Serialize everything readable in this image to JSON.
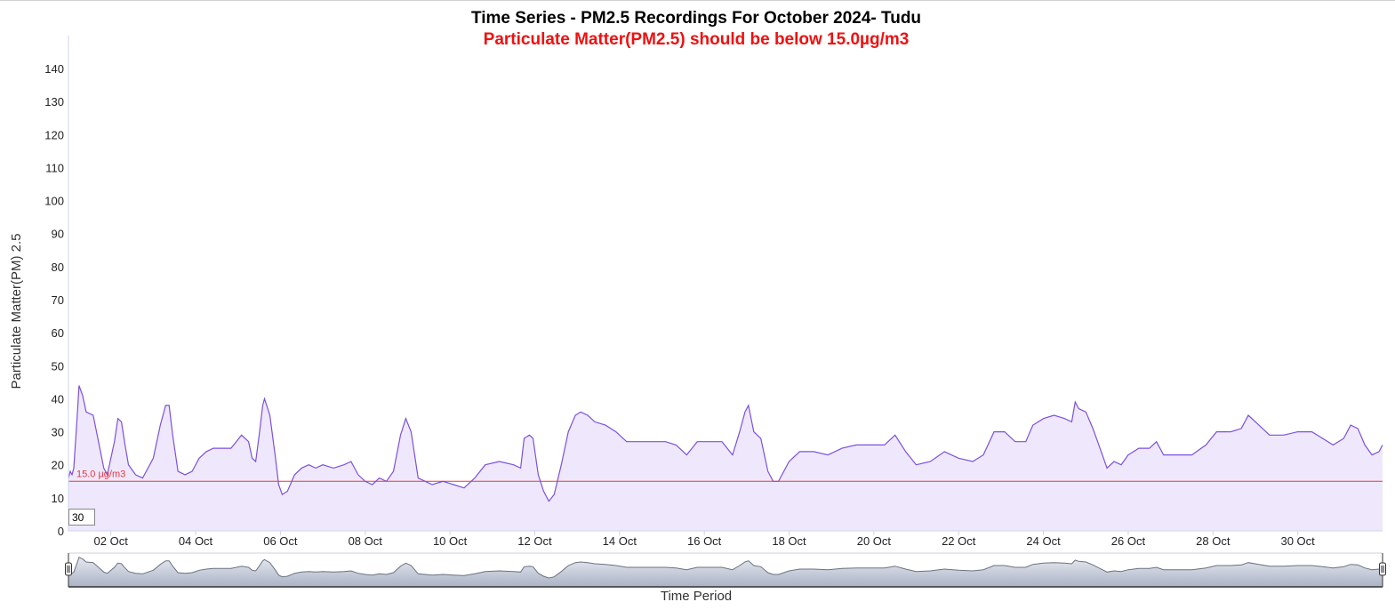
{
  "title": "Time Series - PM2.5 Recordings For October 2024- Tudu",
  "subtitle": "Particulate Matter(PM2.5) should be below 15.0µg/m3",
  "colors": {
    "line": "#7b50e0",
    "fill": "#efe8fc",
    "threshold": "#e8373c",
    "subtitle": "#ee1111",
    "navigator_fill": "#aab2c5",
    "navigator_line": "#6b7280"
  },
  "period_input": {
    "value": "30"
  },
  "chart_data": {
    "type": "area",
    "title": "Time Series - PM2.5 Recordings For October 2024- Tudu",
    "subtitle": "Particulate Matter(PM2.5) should be below 15.0µg/m3",
    "xlabel": "Time Period",
    "ylabel": "Particulate Matter(PM) 2.5",
    "ylim": [
      0,
      145
    ],
    "xlim": [
      "2024-10-01",
      "2024-11-01"
    ],
    "yticks": [
      0,
      10,
      20,
      30,
      40,
      50,
      60,
      70,
      80,
      90,
      100,
      110,
      120,
      130,
      140
    ],
    "xticks": [
      {
        "date": "2024-10-02",
        "label": "02 Oct"
      },
      {
        "date": "2024-10-04",
        "label": "04 Oct"
      },
      {
        "date": "2024-10-06",
        "label": "06 Oct"
      },
      {
        "date": "2024-10-08",
        "label": "08 Oct"
      },
      {
        "date": "2024-10-10",
        "label": "10 Oct"
      },
      {
        "date": "2024-10-12",
        "label": "12 Oct"
      },
      {
        "date": "2024-10-14",
        "label": "14 Oct"
      },
      {
        "date": "2024-10-16",
        "label": "16 Oct"
      },
      {
        "date": "2024-10-18",
        "label": "18 Oct"
      },
      {
        "date": "2024-10-20",
        "label": "20 Oct"
      },
      {
        "date": "2024-10-22",
        "label": "22 Oct"
      },
      {
        "date": "2024-10-24",
        "label": "24 Oct"
      },
      {
        "date": "2024-10-26",
        "label": "26 Oct"
      },
      {
        "date": "2024-10-28",
        "label": "28 Oct"
      },
      {
        "date": "2024-10-30",
        "label": "30 Oct"
      }
    ],
    "threshold": {
      "value": 15.0,
      "label": "15.0 µg/m3"
    },
    "grid": false,
    "legend": "none",
    "series": [
      {
        "points": [
          [
            "2024-10-01 00:00",
            16
          ],
          [
            "2024-10-01 01:00",
            18
          ],
          [
            "2024-10-01 02:00",
            17
          ],
          [
            "2024-10-01 03:00",
            19
          ],
          [
            "2024-10-01 05:00",
            35
          ],
          [
            "2024-10-01 06:00",
            44
          ],
          [
            "2024-10-01 08:00",
            41
          ],
          [
            "2024-10-01 10:00",
            36
          ],
          [
            "2024-10-01 14:00",
            35
          ],
          [
            "2024-10-01 17:00",
            27
          ],
          [
            "2024-10-01 20:00",
            19
          ],
          [
            "2024-10-01 22:00",
            17
          ],
          [
            "2024-10-02 02:00",
            27
          ],
          [
            "2024-10-02 04:00",
            34
          ],
          [
            "2024-10-02 06:00",
            33
          ],
          [
            "2024-10-02 08:00",
            26
          ],
          [
            "2024-10-02 10:00",
            20
          ],
          [
            "2024-10-02 14:00",
            17
          ],
          [
            "2024-10-02 18:00",
            16
          ],
          [
            "2024-10-03 00:00",
            22
          ],
          [
            "2024-10-03 04:00",
            32
          ],
          [
            "2024-10-03 07:00",
            38
          ],
          [
            "2024-10-03 09:00",
            38
          ],
          [
            "2024-10-03 11:00",
            29
          ],
          [
            "2024-10-03 14:00",
            18
          ],
          [
            "2024-10-03 18:00",
            17
          ],
          [
            "2024-10-03 22:00",
            18
          ],
          [
            "2024-10-04 02:00",
            22
          ],
          [
            "2024-10-04 06:00",
            24
          ],
          [
            "2024-10-04 10:00",
            25
          ],
          [
            "2024-10-04 16:00",
            25
          ],
          [
            "2024-10-04 20:00",
            25
          ],
          [
            "2024-10-05 02:00",
            29
          ],
          [
            "2024-10-05 06:00",
            27
          ],
          [
            "2024-10-05 08:00",
            22
          ],
          [
            "2024-10-05 10:00",
            21
          ],
          [
            "2024-10-05 12:00",
            29
          ],
          [
            "2024-10-05 14:00",
            38
          ],
          [
            "2024-10-05 15:00",
            40
          ],
          [
            "2024-10-05 18:00",
            35
          ],
          [
            "2024-10-05 21:00",
            23
          ],
          [
            "2024-10-05 23:00",
            14
          ],
          [
            "2024-10-06 01:00",
            11
          ],
          [
            "2024-10-06 04:00",
            12
          ],
          [
            "2024-10-06 08:00",
            17
          ],
          [
            "2024-10-06 12:00",
            19
          ],
          [
            "2024-10-06 16:00",
            20
          ],
          [
            "2024-10-06 20:00",
            19
          ],
          [
            "2024-10-07 00:00",
            20
          ],
          [
            "2024-10-07 06:00",
            19
          ],
          [
            "2024-10-07 12:00",
            20
          ],
          [
            "2024-10-07 16:00",
            21
          ],
          [
            "2024-10-07 20:00",
            17
          ],
          [
            "2024-10-08 00:00",
            15
          ],
          [
            "2024-10-08 04:00",
            14
          ],
          [
            "2024-10-08 08:00",
            16
          ],
          [
            "2024-10-08 12:00",
            15
          ],
          [
            "2024-10-08 16:00",
            18
          ],
          [
            "2024-10-08 20:00",
            29
          ],
          [
            "2024-10-08 23:00",
            34
          ],
          [
            "2024-10-09 02:00",
            30
          ],
          [
            "2024-10-09 06:00",
            16
          ],
          [
            "2024-10-09 10:00",
            15
          ],
          [
            "2024-10-09 14:00",
            14
          ],
          [
            "2024-10-09 20:00",
            15
          ],
          [
            "2024-10-10 02:00",
            14
          ],
          [
            "2024-10-10 08:00",
            13
          ],
          [
            "2024-10-10 14:00",
            16
          ],
          [
            "2024-10-10 20:00",
            20
          ],
          [
            "2024-10-11 04:00",
            21
          ],
          [
            "2024-10-11 12:00",
            20
          ],
          [
            "2024-10-11 16:00",
            19
          ],
          [
            "2024-10-11 18:00",
            28
          ],
          [
            "2024-10-11 21:00",
            29
          ],
          [
            "2024-10-11 23:00",
            28
          ],
          [
            "2024-10-12 02:00",
            17
          ],
          [
            "2024-10-12 05:00",
            12
          ],
          [
            "2024-10-12 08:00",
            9
          ],
          [
            "2024-10-12 11:00",
            11
          ],
          [
            "2024-10-12 15:00",
            20
          ],
          [
            "2024-10-12 19:00",
            30
          ],
          [
            "2024-10-12 23:00",
            35
          ],
          [
            "2024-10-13 02:00",
            36
          ],
          [
            "2024-10-13 06:00",
            35
          ],
          [
            "2024-10-13 10:00",
            33
          ],
          [
            "2024-10-13 16:00",
            32
          ],
          [
            "2024-10-13 22:00",
            30
          ],
          [
            "2024-10-14 04:00",
            27
          ],
          [
            "2024-10-14 10:00",
            27
          ],
          [
            "2024-10-14 18:00",
            27
          ],
          [
            "2024-10-15 02:00",
            27
          ],
          [
            "2024-10-15 08:00",
            26
          ],
          [
            "2024-10-15 14:00",
            23
          ],
          [
            "2024-10-15 20:00",
            27
          ],
          [
            "2024-10-16 04:00",
            27
          ],
          [
            "2024-10-16 10:00",
            27
          ],
          [
            "2024-10-16 16:00",
            23
          ],
          [
            "2024-10-16 20:00",
            30
          ],
          [
            "2024-10-16 23:00",
            36
          ],
          [
            "2024-10-17 01:00",
            38
          ],
          [
            "2024-10-17 04:00",
            30
          ],
          [
            "2024-10-17 08:00",
            28
          ],
          [
            "2024-10-17 12:00",
            18
          ],
          [
            "2024-10-17 15:00",
            15
          ],
          [
            "2024-10-17 18:00",
            15
          ],
          [
            "2024-10-18 00:00",
            21
          ],
          [
            "2024-10-18 06:00",
            24
          ],
          [
            "2024-10-18 14:00",
            24
          ],
          [
            "2024-10-18 22:00",
            23
          ],
          [
            "2024-10-19 06:00",
            25
          ],
          [
            "2024-10-19 14:00",
            26
          ],
          [
            "2024-10-19 22:00",
            26
          ],
          [
            "2024-10-20 06:00",
            26
          ],
          [
            "2024-10-20 12:00",
            29
          ],
          [
            "2024-10-20 18:00",
            24
          ],
          [
            "2024-10-21 00:00",
            20
          ],
          [
            "2024-10-21 08:00",
            21
          ],
          [
            "2024-10-21 16:00",
            24
          ],
          [
            "2024-10-22 00:00",
            22
          ],
          [
            "2024-10-22 08:00",
            21
          ],
          [
            "2024-10-22 14:00",
            23
          ],
          [
            "2024-10-22 20:00",
            30
          ],
          [
            "2024-10-23 02:00",
            30
          ],
          [
            "2024-10-23 08:00",
            27
          ],
          [
            "2024-10-23 14:00",
            27
          ],
          [
            "2024-10-23 18:00",
            32
          ],
          [
            "2024-10-24 00:00",
            34
          ],
          [
            "2024-10-24 06:00",
            35
          ],
          [
            "2024-10-24 12:00",
            34
          ],
          [
            "2024-10-24 16:00",
            33
          ],
          [
            "2024-10-24 18:00",
            39
          ],
          [
            "2024-10-24 20:00",
            37
          ],
          [
            "2024-10-25 00:00",
            36
          ],
          [
            "2024-10-25 04:00",
            31
          ],
          [
            "2024-10-25 08:00",
            25
          ],
          [
            "2024-10-25 12:00",
            19
          ],
          [
            "2024-10-25 16:00",
            21
          ],
          [
            "2024-10-25 20:00",
            20
          ],
          [
            "2024-10-26 00:00",
            23
          ],
          [
            "2024-10-26 06:00",
            25
          ],
          [
            "2024-10-26 12:00",
            25
          ],
          [
            "2024-10-26 16:00",
            27
          ],
          [
            "2024-10-26 20:00",
            23
          ],
          [
            "2024-10-27 04:00",
            23
          ],
          [
            "2024-10-27 12:00",
            23
          ],
          [
            "2024-10-27 20:00",
            26
          ],
          [
            "2024-10-28 02:00",
            30
          ],
          [
            "2024-10-28 10:00",
            30
          ],
          [
            "2024-10-28 16:00",
            31
          ],
          [
            "2024-10-28 20:00",
            35
          ],
          [
            "2024-10-29 02:00",
            32
          ],
          [
            "2024-10-29 08:00",
            29
          ],
          [
            "2024-10-29 16:00",
            29
          ],
          [
            "2024-10-30 00:00",
            30
          ],
          [
            "2024-10-30 08:00",
            30
          ],
          [
            "2024-10-30 14:00",
            28
          ],
          [
            "2024-10-30 20:00",
            26
          ],
          [
            "2024-10-31 02:00",
            28
          ],
          [
            "2024-10-31 06:00",
            32
          ],
          [
            "2024-10-31 10:00",
            31
          ],
          [
            "2024-10-31 14:00",
            26
          ],
          [
            "2024-10-31 18:00",
            23
          ],
          [
            "2024-10-31 22:00",
            24
          ],
          [
            "2024-11-01 00:00",
            26
          ]
        ]
      }
    ]
  }
}
